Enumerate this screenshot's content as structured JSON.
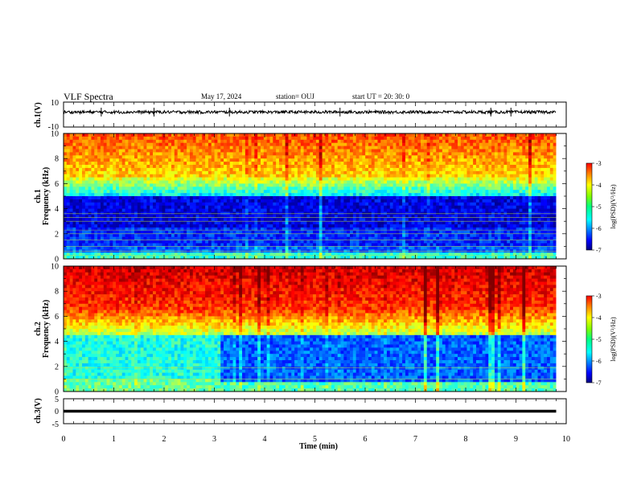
{
  "header": {
    "title": "VLF Spectra",
    "date": "May 17, 2024",
    "station": "station= OUJ",
    "start": "start  UT  =   20: 30: 0"
  },
  "chart_data": [
    {
      "type": "line",
      "name": "ch1-waveform",
      "ylabel": "ch.1(V)",
      "ylim": [
        -10,
        10
      ],
      "y_ticks": [
        "10",
        "-10"
      ],
      "xlim": [
        0,
        10
      ],
      "baseline": 2,
      "noise_amplitude": 1.2
    },
    {
      "type": "heatmap",
      "name": "ch1-spectrogram",
      "ylabel": [
        "ch.1",
        "Frequency  (kHz)"
      ],
      "ylim": [
        0,
        10
      ],
      "y_ticks": [
        "0",
        "2",
        "4",
        "6",
        "8",
        "10"
      ],
      "xlim": [
        0,
        9.8
      ],
      "colorbar": {
        "label": "log(PSD)(V²/Hz)",
        "range": [
          -7,
          -3
        ],
        "ticks": [
          "-3",
          "-4",
          "-5",
          "-6",
          "-7"
        ]
      }
    },
    {
      "type": "heatmap",
      "name": "ch2-spectrogram",
      "ylabel": [
        "ch.2",
        "Frequency  (kHz)"
      ],
      "ylim": [
        0,
        10
      ],
      "y_ticks": [
        "0",
        "2",
        "4",
        "6",
        "8",
        "10"
      ],
      "xlim": [
        0,
        9.8
      ],
      "transition_time_min": 3.1,
      "colorbar": {
        "label": "log(PSD)(V²/Hz)",
        "range": [
          -7,
          -3
        ],
        "ticks": [
          "-3",
          "-4",
          "-5",
          "-6",
          "-7"
        ]
      }
    },
    {
      "type": "line",
      "name": "ch3-waveform",
      "ylabel": "ch.3(V)",
      "ylim": [
        -5,
        5
      ],
      "y_ticks": [
        "5",
        "0",
        "-5"
      ],
      "xlim": [
        0,
        10
      ],
      "baseline": 0
    }
  ],
  "xaxis": {
    "label": "Time  (min)",
    "ticks": [
      "0",
      "1",
      "2",
      "3",
      "4",
      "5",
      "6",
      "7",
      "8",
      "9",
      "10"
    ],
    "range": [
      0,
      10
    ]
  },
  "colors": {
    "frame": "#000000",
    "background": "#ffffff"
  }
}
